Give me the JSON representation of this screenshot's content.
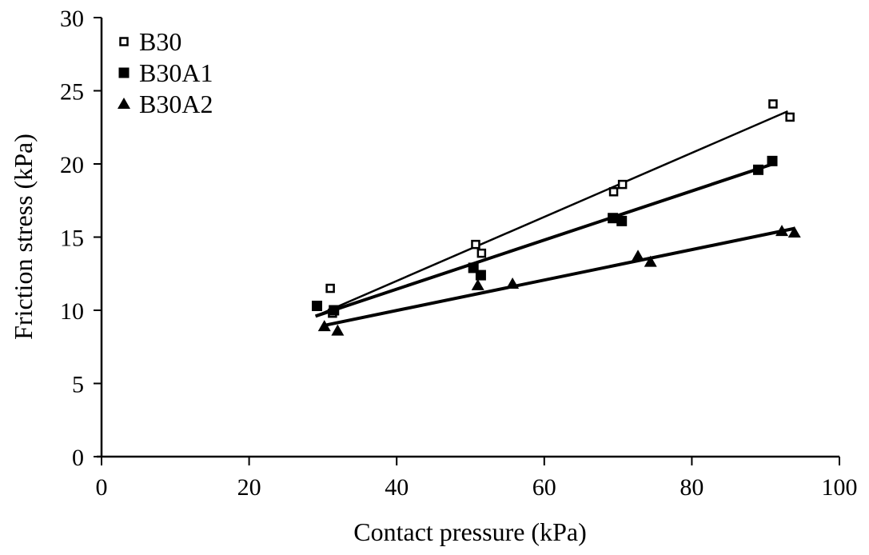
{
  "chart_data": {
    "type": "scatter",
    "title": "",
    "xlabel": "Contact pressure (kPa)",
    "ylabel": "Friction stress (kPa)",
    "xlim": [
      0,
      100
    ],
    "ylim": [
      0,
      30
    ],
    "xticks": [
      "0",
      "20",
      "40",
      "60",
      "80",
      "100"
    ],
    "yticks": [
      "0",
      "5",
      "10",
      "15",
      "20",
      "25",
      "30"
    ],
    "grid": false,
    "legend_position": "top-left",
    "series": [
      {
        "name": "B30",
        "marker": "open-square",
        "x": [
          31.0,
          31.3,
          50.7,
          51.5,
          69.4,
          70.6,
          91.0,
          93.3
        ],
        "y": [
          11.5,
          9.8,
          14.5,
          13.9,
          18.1,
          18.6,
          24.1,
          23.2
        ],
        "trendline": {
          "x": [
            29.0,
            93.0
          ],
          "y": [
            9.6,
            23.6
          ]
        }
      },
      {
        "name": "B30A1",
        "marker": "filled-square",
        "x": [
          29.2,
          31.5,
          50.4,
          51.4,
          69.3,
          70.5,
          89.0,
          90.9
        ],
        "y": [
          10.3,
          10.0,
          12.9,
          12.4,
          16.3,
          16.1,
          19.6,
          20.2
        ],
        "trendline": {
          "x": [
            29.0,
            91.0
          ],
          "y": [
            9.6,
            20.0
          ]
        }
      },
      {
        "name": "B30A2",
        "marker": "filled-triangle",
        "x": [
          30.2,
          32.0,
          51.0,
          55.7,
          72.7,
          74.4,
          92.2,
          93.9
        ],
        "y": [
          8.9,
          8.6,
          11.7,
          11.8,
          13.7,
          13.3,
          15.4,
          15.3
        ],
        "trendline": {
          "x": [
            30.5,
            94.0
          ],
          "y": [
            9.0,
            15.6
          ]
        }
      }
    ]
  }
}
